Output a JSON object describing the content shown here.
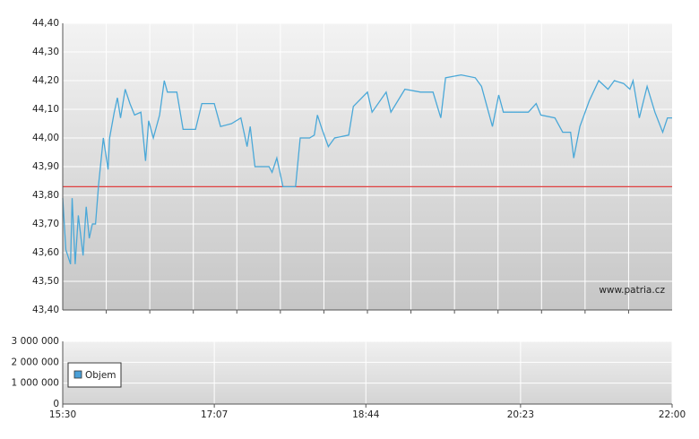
{
  "chart_data": [
    {
      "type": "line",
      "watermark": "www.patria.cz",
      "xlim": [
        "15:30",
        "22:00"
      ],
      "ylim": [
        43.4,
        44.4
      ],
      "yticks": [
        {
          "value": 43.4,
          "label": "43,40"
        },
        {
          "value": 43.5,
          "label": "43,50"
        },
        {
          "value": 43.6,
          "label": "43,60"
        },
        {
          "value": 43.7,
          "label": "43,70"
        },
        {
          "value": 43.8,
          "label": "43,80"
        },
        {
          "value": 43.9,
          "label": "43,90"
        },
        {
          "value": 44.0,
          "label": "44,00"
        },
        {
          "value": 44.1,
          "label": "44,10"
        },
        {
          "value": 44.2,
          "label": "44,20"
        },
        {
          "value": 44.3,
          "label": "44,30"
        },
        {
          "value": 44.4,
          "label": "44,40"
        }
      ],
      "grid": true,
      "reference_line": {
        "value": 43.83,
        "color": "#e04040"
      },
      "x": [
        "15:30",
        "15:32",
        "15:35",
        "15:36",
        "15:38",
        "15:40",
        "15:43",
        "15:45",
        "15:47",
        "15:49",
        "15:51",
        "15:53",
        "15:56",
        "15:59",
        "16:00",
        "16:03",
        "16:05",
        "16:07",
        "16:10",
        "16:13",
        "16:16",
        "16:20",
        "16:23",
        "16:25",
        "16:28",
        "16:32",
        "16:35",
        "16:37",
        "16:43",
        "16:47",
        "16:55",
        "16:59",
        "17:07",
        "17:11",
        "17:18",
        "17:24",
        "17:28",
        "17:30",
        "17:33",
        "17:42",
        "17:44",
        "17:47",
        "17:51",
        "17:59",
        "18:02",
        "18:08",
        "18:11",
        "18:13",
        "18:16",
        "18:20",
        "18:24",
        "18:33",
        "18:36",
        "18:45",
        "18:48",
        "18:57",
        "19:00",
        "19:09",
        "19:19",
        "19:24",
        "19:27",
        "19:32",
        "19:35",
        "19:45",
        "19:54",
        "19:58",
        "20:05",
        "20:09",
        "20:12",
        "20:28",
        "20:33",
        "20:36",
        "20:45",
        "20:50",
        "20:55",
        "20:57",
        "21:01",
        "21:07",
        "21:13",
        "21:19",
        "21:23",
        "21:29",
        "21:33",
        "21:35",
        "21:39",
        "21:44",
        "21:49",
        "21:54",
        "21:57",
        "22:00"
      ],
      "series": [
        {
          "color": "#4aa8d8",
          "values": [
            43.79,
            43.61,
            43.56,
            43.79,
            43.56,
            43.73,
            43.59,
            43.76,
            43.65,
            43.7,
            43.7,
            43.84,
            44.0,
            43.89,
            44.0,
            44.09,
            44.14,
            44.07,
            44.17,
            44.12,
            44.08,
            44.09,
            43.92,
            44.06,
            44.0,
            44.08,
            44.2,
            44.16,
            44.16,
            44.03,
            44.03,
            44.12,
            44.12,
            44.04,
            44.05,
            44.07,
            43.97,
            44.04,
            43.9,
            43.9,
            43.88,
            43.93,
            43.83,
            43.83,
            44.0,
            44.0,
            44.01,
            44.08,
            44.03,
            43.97,
            44.0,
            44.01,
            44.11,
            44.16,
            44.09,
            44.16,
            44.09,
            44.17,
            44.16,
            44.16,
            44.16,
            44.07,
            44.21,
            44.22,
            44.21,
            44.18,
            44.04,
            44.15,
            44.09,
            44.09,
            44.12,
            44.08,
            44.07,
            44.02,
            44.02,
            43.93,
            44.04,
            44.13,
            44.2,
            44.17,
            44.2,
            44.19,
            44.17,
            44.2,
            44.07,
            44.18,
            44.09,
            44.02,
            44.07,
            44.07
          ]
        }
      ]
    },
    {
      "type": "bar",
      "xlim": [
        "15:30",
        "22:00"
      ],
      "xticks": [
        "15:30",
        "17:07",
        "18:44",
        "20:23",
        "22:00"
      ],
      "ylim": [
        0,
        3000000
      ],
      "yticks": [
        0,
        {
          "value": 1000000,
          "label": "1 000 000"
        },
        {
          "value": 2000000,
          "label": "2 000 000"
        },
        {
          "value": 3000000,
          "label": "3 000 000"
        }
      ],
      "grid": true,
      "series": [
        {
          "name": "Objem",
          "color": "#4aa0d8",
          "values": []
        }
      ]
    }
  ]
}
